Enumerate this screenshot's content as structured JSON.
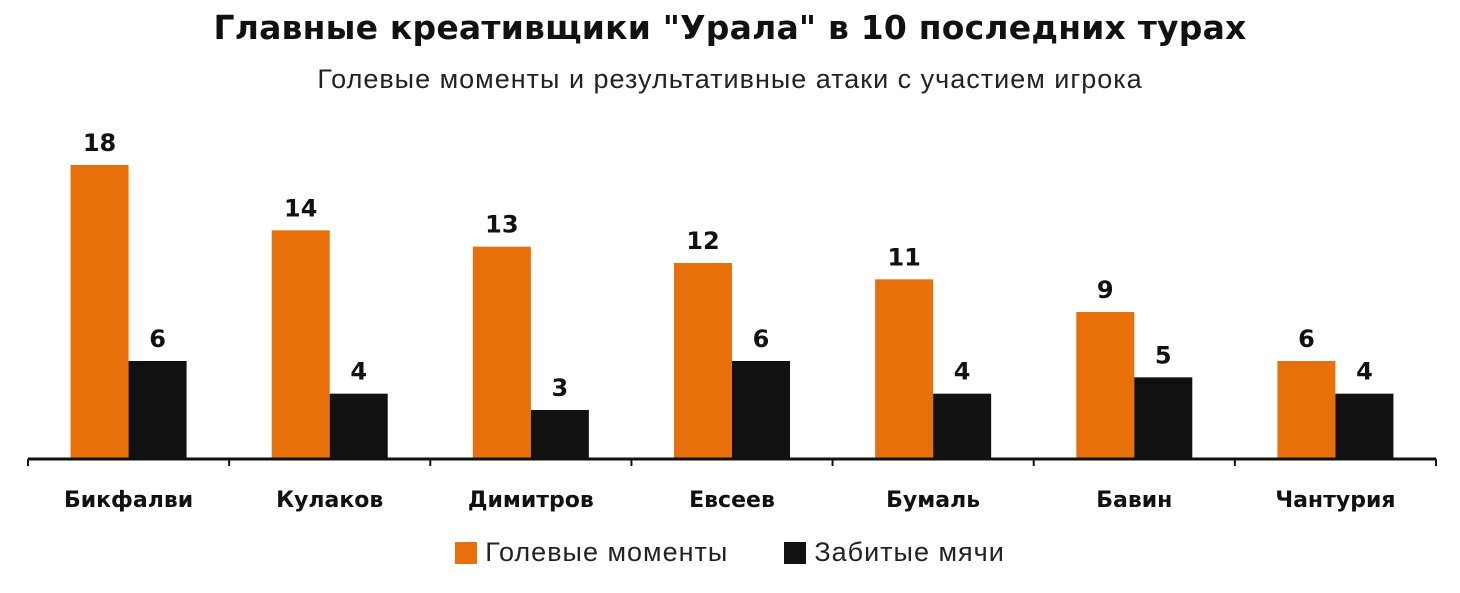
{
  "title": "Главные креативщики \"Урала\" в 10 последних турах",
  "subtitle": "Голевые моменты и результативные  атаки с участием игрока",
  "colors": {
    "chances": "#E8700A",
    "goals": "#111111",
    "axis": "#111111"
  },
  "chart_data": {
    "type": "bar",
    "categories": [
      "Бикфалви",
      "Кулаков",
      "Димитров",
      "Евсеев",
      "Бумаль",
      "Бавин",
      "Чантурия"
    ],
    "series": [
      {
        "name": "Голевые моменты",
        "values": [
          18,
          14,
          13,
          12,
          11,
          9,
          6
        ]
      },
      {
        "name": "Забитые мячи",
        "values": [
          6,
          4,
          3,
          6,
          4,
          5,
          4
        ]
      }
    ],
    "ylim": [
      0,
      18
    ],
    "grid": false,
    "legend_position": "bottom"
  }
}
